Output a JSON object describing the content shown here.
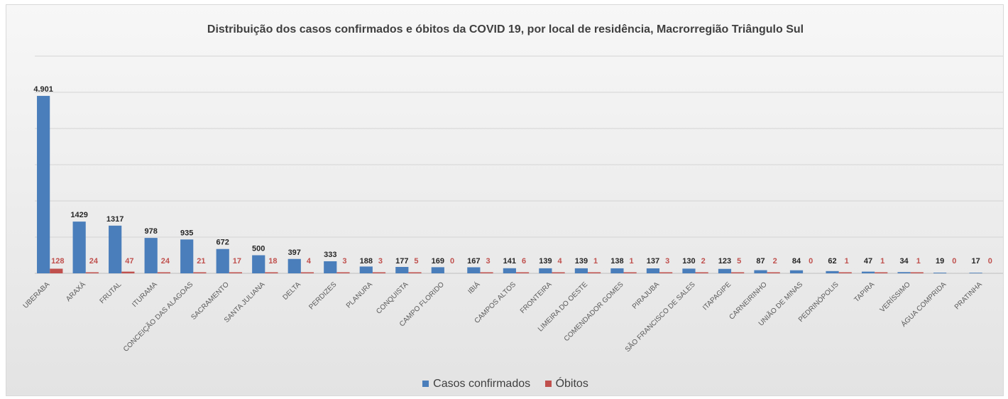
{
  "chart_data": {
    "type": "bar",
    "title": "Distribuição dos casos confirmados e óbitos da COVID 19, por local de residência, Macrorregião Triângulo Sul",
    "categories": [
      "UBERABA",
      "ARAXÁ",
      "FRUTAL",
      "ITURAMA",
      "CONCEIÇÃO DAS ALAGOAS",
      "SACRAMENTO",
      "SANTA JULIANA",
      "DELTA",
      "PERDIZES",
      "PLANURA",
      "CONQUISTA",
      "CAMPO FLORIDO",
      "IBIÁ",
      "CAMPOS ALTOS",
      "FRONTEIRA",
      "LIMEIRA DO OESTE",
      "COMENDADOR GOMES",
      "PIRAJUBA",
      "SÃO FRANCISCO DE SALES",
      "ITAPAGIPE",
      "CARNEIRINHO",
      "UNIÃO DE MINAS",
      "PEDRINÓPOLIS",
      "TAPIRA",
      "VERÍSSIMO",
      "ÁGUA COMPRIDA",
      "PRATINHA"
    ],
    "series": [
      {
        "name": "Casos confirmados",
        "color": "#4a7ebb",
        "values": [
          4901,
          1429,
          1317,
          978,
          935,
          672,
          500,
          397,
          333,
          188,
          177,
          169,
          167,
          141,
          139,
          139,
          138,
          137,
          130,
          123,
          87,
          84,
          62,
          47,
          34,
          19,
          17
        ],
        "labels": [
          "4.901",
          "1429",
          "1317",
          "978",
          "935",
          "672",
          "500",
          "397",
          "333",
          "188",
          "177",
          "169",
          "167",
          "141",
          "139",
          "139",
          "138",
          "137",
          "130",
          "123",
          "87",
          "84",
          "62",
          "47",
          "34",
          "19",
          "17"
        ]
      },
      {
        "name": "Óbitos",
        "color": "#c0504d",
        "values": [
          128,
          24,
          47,
          24,
          21,
          17,
          18,
          4,
          3,
          3,
          5,
          0,
          3,
          6,
          4,
          1,
          1,
          3,
          2,
          5,
          2,
          0,
          1,
          1,
          1,
          0,
          0
        ],
        "labels": [
          "128",
          "24",
          "47",
          "24",
          "21",
          "17",
          "18",
          "4",
          "3",
          "3",
          "5",
          "0",
          "3",
          "6",
          "4",
          "1",
          "1",
          "3",
          "2",
          "5",
          "2",
          "0",
          "1",
          "1",
          "1",
          "0",
          "0"
        ]
      }
    ],
    "ylim": [
      0,
      6000
    ],
    "grid": true,
    "legend_position": "bottom"
  },
  "legend": {
    "casos": "Casos confirmados",
    "obitos": "Óbitos"
  }
}
